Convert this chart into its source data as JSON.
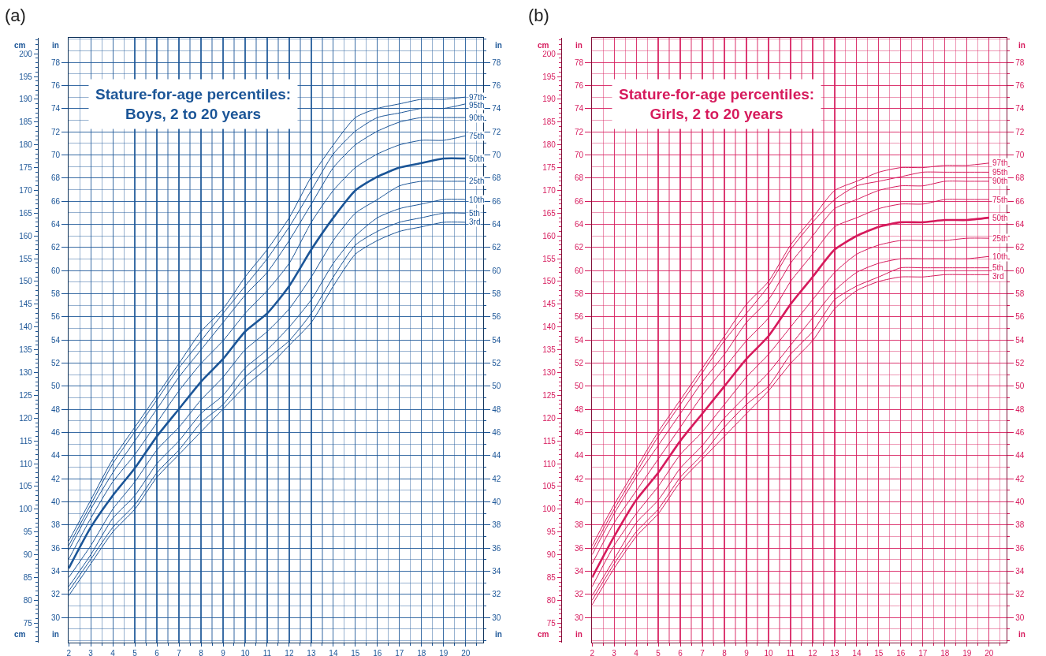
{
  "chart_data": [
    {
      "type": "line",
      "title": "Stature-for-age percentiles:\nBoys, 2 to 20 years",
      "annotations": [
        "(a)"
      ],
      "ylabel": "cm",
      "y2label": "in",
      "y3label": "in",
      "x": [
        2,
        3,
        4,
        5,
        6,
        7,
        8,
        9,
        10,
        11,
        12,
        13,
        14,
        15,
        16,
        17,
        18,
        19,
        20
      ],
      "xlim": [
        2,
        20.8
      ],
      "xticks": [
        2,
        3,
        4,
        5,
        6,
        7,
        8,
        9,
        10,
        11,
        12,
        13,
        14,
        15,
        16,
        17,
        18,
        19,
        20
      ],
      "ylim": [
        70.7,
        203.5
      ],
      "yticks": [
        75,
        80,
        85,
        90,
        95,
        100,
        105,
        110,
        115,
        120,
        125,
        130,
        135,
        140,
        145,
        150,
        155,
        160,
        165,
        170,
        175,
        180,
        185,
        190,
        195,
        200
      ],
      "y2lim": [
        27.83,
        80.12
      ],
      "y2ticks": [
        30,
        32,
        34,
        36,
        38,
        40,
        42,
        44,
        46,
        48,
        50,
        52,
        54,
        56,
        58,
        60,
        62,
        64,
        66,
        68,
        70,
        72,
        74,
        76,
        78
      ],
      "y3lim": [
        27.83,
        80.12
      ],
      "y3ticks": [
        30,
        32,
        34,
        36,
        38,
        40,
        42,
        44,
        46,
        48,
        50,
        52,
        54,
        56,
        58,
        60,
        62,
        64,
        66,
        68,
        70,
        72,
        74,
        76,
        78
      ],
      "grid": true,
      "legend": false,
      "line_style": "solid",
      "series": [
        {
          "name": "97th",
          "color": "#1b5597",
          "values": [
            93,
            102,
            111,
            118,
            125,
            132,
            139,
            144,
            151,
            157,
            164,
            173,
            180,
            186,
            188,
            189,
            190,
            190,
            190.5
          ]
        },
        {
          "name": "95th",
          "color": "#1b5597",
          "values": [
            92,
            101,
            110,
            117,
            124,
            131,
            137,
            143,
            149,
            155,
            162,
            170,
            178,
            183,
            186,
            187,
            188,
            188,
            189
          ]
        },
        {
          "name": "90th",
          "color": "#1b5597",
          "values": [
            91,
            100,
            108,
            115,
            122,
            129,
            135,
            141,
            147,
            152,
            159,
            167,
            175,
            180,
            183,
            185,
            186,
            186,
            186
          ]
        },
        {
          "name": "75th",
          "color": "#1b5597",
          "values": [
            89,
            98,
            106,
            112,
            119,
            126,
            132,
            137,
            143,
            148,
            154,
            163,
            170,
            175,
            178,
            180,
            181,
            181,
            182
          ]
        },
        {
          "name": "50th",
          "color": "#1b5597",
          "values": [
            87,
            96,
            103,
            109,
            116,
            122,
            128,
            133,
            139,
            143,
            149,
            157,
            164,
            170,
            173,
            175,
            176,
            177,
            177
          ]
        },
        {
          "name": "25th",
          "color": "#1b5597",
          "values": [
            85,
            92,
            100,
            106,
            113,
            118,
            124,
            129,
            135,
            139,
            144,
            151,
            159,
            165,
            168,
            171,
            172,
            172,
            172
          ]
        },
        {
          "name": "10th",
          "color": "#1b5597",
          "values": [
            83,
            90,
            98,
            103,
            110,
            115,
            121,
            125,
            131,
            135,
            140,
            146,
            154,
            160,
            164,
            166,
            167,
            168,
            168
          ]
        },
        {
          "name": "5th",
          "color": "#1b5597",
          "values": [
            82,
            89,
            96,
            101,
            108,
            113,
            119,
            123,
            129,
            133,
            137,
            143,
            151,
            158,
            161,
            163,
            164,
            165,
            165
          ]
        },
        {
          "name": "3rd",
          "color": "#1b5597",
          "values": [
            81,
            88,
            95,
            100,
            107,
            112,
            117,
            122,
            127,
            131,
            136,
            141,
            149,
            156,
            159,
            161,
            162,
            163,
            163
          ]
        }
      ]
    },
    {
      "type": "line",
      "title": "Stature-for-age percentiles:\nGirls, 2 to 20 years",
      "annotations": [
        "(b)"
      ],
      "ylabel": "cm",
      "y2label": "in",
      "y3label": "in",
      "x": [
        2,
        3,
        4,
        5,
        6,
        7,
        8,
        9,
        10,
        11,
        12,
        13,
        14,
        15,
        16,
        17,
        18,
        19,
        20
      ],
      "xlim": [
        2,
        20.8
      ],
      "xticks": [
        2,
        3,
        4,
        5,
        6,
        7,
        8,
        9,
        10,
        11,
        12,
        13,
        14,
        15,
        16,
        17,
        18,
        19,
        20
      ],
      "ylim": [
        70.7,
        203.5
      ],
      "yticks": [
        75,
        80,
        85,
        90,
        95,
        100,
        105,
        110,
        115,
        120,
        125,
        130,
        135,
        140,
        145,
        150,
        155,
        160,
        165,
        170,
        175,
        180,
        185,
        190,
        195,
        200
      ],
      "y2lim": [
        27.83,
        80.12
      ],
      "y2ticks": [
        30,
        32,
        34,
        36,
        38,
        40,
        42,
        44,
        46,
        48,
        50,
        52,
        54,
        56,
        58,
        60,
        62,
        64,
        66,
        68,
        70,
        72,
        74,
        76,
        78
      ],
      "y3lim": [
        27.83,
        80.12
      ],
      "y3ticks": [
        30,
        32,
        34,
        36,
        38,
        40,
        42,
        44,
        46,
        48,
        50,
        52,
        54,
        56,
        58,
        60,
        62,
        64,
        66,
        68,
        70,
        72,
        74,
        76,
        78
      ],
      "grid": true,
      "legend": false,
      "line_style": "solid",
      "series": [
        {
          "name": "97th",
          "color": "#d61a5c",
          "values": [
            92,
            101,
            109,
            117,
            124,
            131,
            138,
            145,
            150,
            158,
            164,
            170,
            172,
            174,
            175,
            175,
            175.5,
            175.5,
            176
          ]
        },
        {
          "name": "95th",
          "color": "#d61a5c",
          "values": [
            91,
            100,
            108,
            116,
            123,
            130,
            137,
            143,
            149,
            157,
            163,
            168,
            171,
            172,
            173,
            174,
            174,
            174,
            174
          ]
        },
        {
          "name": "90th",
          "color": "#d61a5c",
          "values": [
            90,
            99,
            107,
            114,
            121,
            128,
            134,
            141,
            146,
            154,
            160,
            166,
            168,
            170,
            171,
            171,
            172,
            172,
            172
          ]
        },
        {
          "name": "75th",
          "color": "#d61a5c",
          "values": [
            88,
            97,
            104,
            111,
            118,
            125,
            131,
            137,
            142,
            150,
            156,
            162,
            164,
            166,
            167,
            167,
            168,
            168,
            168
          ]
        },
        {
          "name": "50th",
          "color": "#d61a5c",
          "values": [
            85,
            94,
            102,
            108,
            115,
            121,
            127,
            133,
            138,
            145,
            151,
            157,
            160,
            162,
            163,
            163,
            163.5,
            163.5,
            164
          ]
        },
        {
          "name": "25th",
          "color": "#d61a5c",
          "values": [
            83,
            92,
            99,
            105,
            112,
            117,
            123,
            129,
            134,
            140,
            146,
            152,
            156,
            158,
            159,
            159,
            159,
            159.5,
            159.5
          ]
        },
        {
          "name": "10th",
          "color": "#d61a5c",
          "values": [
            81,
            89,
            97,
            102,
            109,
            114,
            120,
            125,
            130,
            136,
            142,
            148,
            152,
            154,
            155,
            155,
            155,
            155,
            155.5
          ]
        },
        {
          "name": "5th",
          "color": "#d61a5c",
          "values": [
            80,
            88,
            95,
            100,
            107,
            112,
            118,
            123,
            127,
            134,
            139,
            146,
            149,
            151,
            153,
            153,
            153,
            153,
            153
          ]
        },
        {
          "name": "3rd",
          "color": "#d61a5c",
          "values": [
            79,
            87,
            94,
            99,
            106,
            111,
            116,
            121,
            126,
            132,
            137,
            144,
            148,
            150,
            151,
            151,
            151.5,
            151.5,
            151.5
          ]
        }
      ]
    }
  ]
}
